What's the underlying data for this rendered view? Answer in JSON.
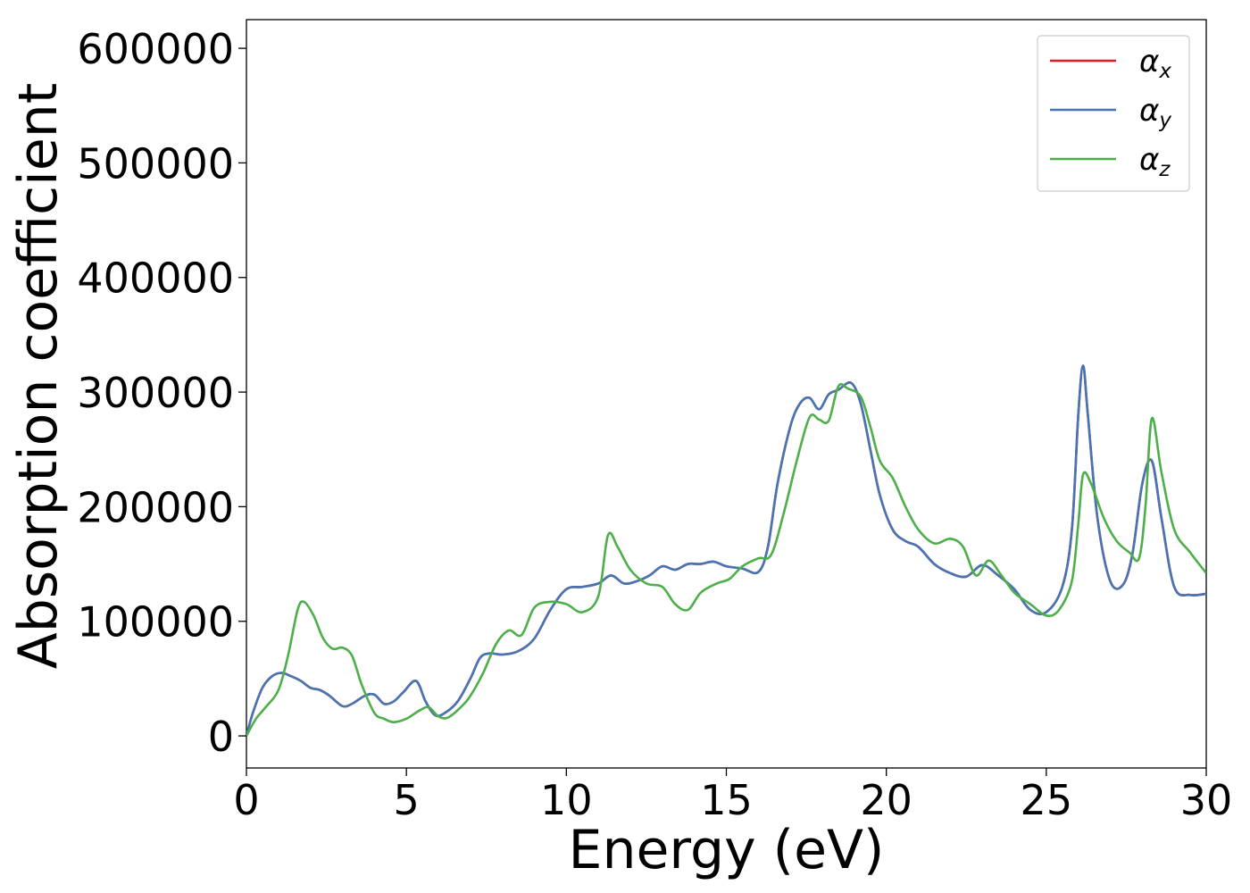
{
  "chart_data": {
    "type": "line",
    "xlabel": "Energy (eV)",
    "ylabel": "Absorption coefficient",
    "xlim": [
      0,
      30
    ],
    "ylim": [
      -28000,
      625000
    ],
    "xticks": [
      0,
      5,
      10,
      15,
      20,
      25,
      30
    ],
    "yticks": [
      0,
      100000,
      200000,
      300000,
      400000,
      500000,
      600000
    ],
    "xtick_labels": [
      "0",
      "5",
      "10",
      "15",
      "20",
      "25",
      "30"
    ],
    "ytick_labels": [
      "0",
      "100000",
      "200000",
      "300000",
      "400000",
      "500000",
      "600000"
    ],
    "grid": false,
    "legend_position": "top-right",
    "series": [
      {
        "name": "α_x",
        "label_main": "α",
        "label_sub": "x",
        "color": "#e41a1c",
        "x": [
          0,
          0.2,
          0.5,
          0.8,
          1.1,
          1.4,
          1.7,
          2.0,
          2.3,
          2.6,
          3.0,
          3.3,
          3.7,
          4.0,
          4.3,
          4.6,
          4.9,
          5.3,
          5.6,
          5.9,
          6.2,
          6.6,
          7.0,
          7.3,
          7.6,
          8.0,
          8.5,
          9.0,
          9.5,
          10.0,
          10.5,
          11.0,
          11.4,
          11.8,
          12.2,
          12.6,
          13.0,
          13.4,
          13.8,
          14.2,
          14.6,
          15.0,
          15.5,
          16.0,
          16.3,
          16.6,
          17.0,
          17.3,
          17.6,
          17.9,
          18.2,
          18.5,
          18.9,
          19.2,
          19.5,
          19.8,
          20.2,
          20.6,
          21.0,
          21.5,
          22.0,
          22.5,
          23.0,
          23.5,
          24.0,
          24.5,
          25.0,
          25.5,
          25.8,
          26.0,
          26.15,
          26.3,
          26.6,
          27.0,
          27.4,
          27.7,
          28.0,
          28.3,
          28.6,
          29.0,
          29.5,
          30.0
        ],
        "y": [
          0,
          20000,
          42000,
          52000,
          55000,
          52000,
          48000,
          42000,
          40000,
          35000,
          26000,
          28000,
          35000,
          36000,
          28000,
          30000,
          38000,
          48000,
          30000,
          18000,
          20000,
          30000,
          50000,
          68000,
          72000,
          71000,
          74000,
          85000,
          110000,
          128000,
          130000,
          133000,
          140000,
          133000,
          135000,
          140000,
          148000,
          145000,
          150000,
          150000,
          152000,
          148000,
          146000,
          143000,
          165000,
          220000,
          270000,
          290000,
          295000,
          285000,
          298000,
          302000,
          308000,
          290000,
          250000,
          210000,
          180000,
          170000,
          165000,
          150000,
          142000,
          139000,
          149000,
          140000,
          128000,
          110000,
          108000,
          130000,
          180000,
          280000,
          323000,
          280000,
          190000,
          135000,
          132000,
          160000,
          220000,
          240000,
          190000,
          130000,
          123000,
          124000
        ]
      },
      {
        "name": "α_y",
        "label_main": "α",
        "label_sub": "y",
        "color": "#4575b4",
        "x": [
          0,
          0.2,
          0.5,
          0.8,
          1.1,
          1.4,
          1.7,
          2.0,
          2.3,
          2.6,
          3.0,
          3.3,
          3.7,
          4.0,
          4.3,
          4.6,
          4.9,
          5.3,
          5.6,
          5.9,
          6.2,
          6.6,
          7.0,
          7.3,
          7.6,
          8.0,
          8.5,
          9.0,
          9.5,
          10.0,
          10.5,
          11.0,
          11.4,
          11.8,
          12.2,
          12.6,
          13.0,
          13.4,
          13.8,
          14.2,
          14.6,
          15.0,
          15.5,
          16.0,
          16.3,
          16.6,
          17.0,
          17.3,
          17.6,
          17.9,
          18.2,
          18.5,
          18.9,
          19.2,
          19.5,
          19.8,
          20.2,
          20.6,
          21.0,
          21.5,
          22.0,
          22.5,
          23.0,
          23.5,
          24.0,
          24.5,
          25.0,
          25.5,
          25.8,
          26.0,
          26.15,
          26.3,
          26.6,
          27.0,
          27.4,
          27.7,
          28.0,
          28.3,
          28.6,
          29.0,
          29.5,
          30.0
        ],
        "y": [
          0,
          20000,
          42000,
          52000,
          55000,
          52000,
          48000,
          42000,
          40000,
          35000,
          26000,
          28000,
          35000,
          36000,
          28000,
          30000,
          38000,
          48000,
          30000,
          18000,
          20000,
          30000,
          50000,
          68000,
          72000,
          71000,
          74000,
          85000,
          110000,
          128000,
          130000,
          133000,
          140000,
          133000,
          135000,
          140000,
          148000,
          145000,
          150000,
          150000,
          152000,
          148000,
          146000,
          143000,
          165000,
          220000,
          270000,
          290000,
          295000,
          285000,
          298000,
          302000,
          308000,
          290000,
          250000,
          210000,
          180000,
          170000,
          165000,
          150000,
          142000,
          139000,
          149000,
          140000,
          128000,
          110000,
          108000,
          130000,
          180000,
          280000,
          323000,
          280000,
          190000,
          135000,
          132000,
          160000,
          220000,
          240000,
          190000,
          130000,
          123000,
          124000
        ]
      },
      {
        "name": "α_z",
        "label_main": "α",
        "label_sub": "z",
        "color": "#4daf4a",
        "x": [
          0,
          0.3,
          0.6,
          1.0,
          1.3,
          1.6,
          1.8,
          2.1,
          2.4,
          2.7,
          3.0,
          3.3,
          3.6,
          4.0,
          4.3,
          4.6,
          5.0,
          5.4,
          5.7,
          6.0,
          6.3,
          6.7,
          7.0,
          7.4,
          7.8,
          8.2,
          8.6,
          9.0,
          9.5,
          10.0,
          10.5,
          11.0,
          11.3,
          11.6,
          12.0,
          12.5,
          13.0,
          13.4,
          13.8,
          14.2,
          14.7,
          15.1,
          15.5,
          16.0,
          16.4,
          16.8,
          17.2,
          17.6,
          17.9,
          18.2,
          18.5,
          18.8,
          19.2,
          19.5,
          19.8,
          20.2,
          20.6,
          21.0,
          21.5,
          22.0,
          22.4,
          22.8,
          23.2,
          23.6,
          24.0,
          24.5,
          25.0,
          25.4,
          25.8,
          26.0,
          26.15,
          26.4,
          26.8,
          27.2,
          27.6,
          27.9,
          28.1,
          28.3,
          28.6,
          29.0,
          29.5,
          30.0
        ],
        "y": [
          0,
          15000,
          25000,
          40000,
          70000,
          110000,
          117000,
          105000,
          85000,
          76000,
          77000,
          70000,
          45000,
          20000,
          15000,
          12000,
          15000,
          22000,
          25000,
          17000,
          16000,
          25000,
          35000,
          55000,
          80000,
          92000,
          88000,
          112000,
          117000,
          115000,
          108000,
          122000,
          175000,
          165000,
          145000,
          133000,
          130000,
          115000,
          110000,
          125000,
          133000,
          137000,
          148000,
          155000,
          158000,
          195000,
          240000,
          278000,
          276000,
          275000,
          305000,
          303000,
          296000,
          270000,
          240000,
          225000,
          200000,
          180000,
          168000,
          172000,
          165000,
          140000,
          153000,
          140000,
          125000,
          115000,
          105000,
          110000,
          135000,
          185000,
          228000,
          220000,
          190000,
          170000,
          160000,
          155000,
          200000,
          277000,
          230000,
          180000,
          160000,
          142000
        ]
      }
    ]
  }
}
